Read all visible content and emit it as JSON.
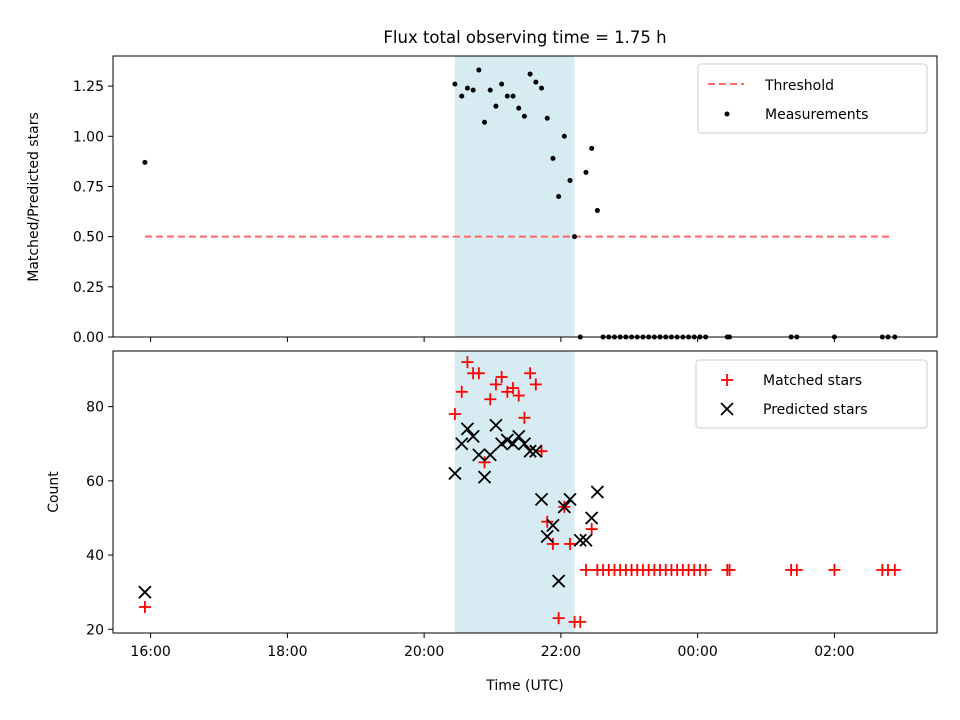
{
  "title": "Flux total observing time = 1.75 h",
  "chart_data": [
    {
      "type": "scatter",
      "panel": "top",
      "title": "Flux total observing time = 1.75 h",
      "xlabel": "",
      "ylabel": "Matched/Predicted stars",
      "xlim": [
        "15:27",
        "03:30"
      ],
      "ylim": [
        0,
        1.4
      ],
      "x_tick_labels": [
        "16:00",
        "18:00",
        "20:00",
        "22:00",
        "00:00",
        "02:00"
      ],
      "y_ticks": [
        0.0,
        0.25,
        0.5,
        0.75,
        1.0,
        1.25
      ],
      "y_tick_labels": [
        "0.00",
        "0.25",
        "0.50",
        "0.75",
        "1.00",
        "1.25"
      ],
      "shaded_interval": {
        "start": "20:27",
        "end": "22:12",
        "color": "#add8e6"
      },
      "legend_position": "top-right",
      "series": [
        {
          "name": "Threshold",
          "style": "dashed-line",
          "color": "#ff6666",
          "x": [
            "15:55",
            "02:50"
          ],
          "y": [
            0.5,
            0.5
          ]
        },
        {
          "name": "Measurements",
          "style": "dot",
          "color": "#000000",
          "x": [
            "15:55",
            "20:27",
            "20:33",
            "20:38",
            "20:43",
            "20:48",
            "20:53",
            "20:58",
            "21:03",
            "21:08",
            "21:13",
            "21:18",
            "21:23",
            "21:28",
            "21:33",
            "21:38",
            "21:43",
            "21:48",
            "21:53",
            "21:58",
            "22:03",
            "22:08",
            "22:12",
            "22:17",
            "22:22",
            "22:27",
            "22:32",
            "22:37",
            "22:42",
            "22:47",
            "22:52",
            "22:57",
            "23:02",
            "23:07",
            "23:12",
            "23:17",
            "23:22",
            "23:27",
            "23:32",
            "23:37",
            "23:42",
            "23:47",
            "23:52",
            "23:57",
            "24:02",
            "24:07",
            "24:26",
            "24:28",
            "25:22",
            "25:27",
            "26:00",
            "26:42",
            "26:47",
            "26:53"
          ],
          "y": [
            0.87,
            1.26,
            1.2,
            1.24,
            1.23,
            1.33,
            1.07,
            1.23,
            1.15,
            1.26,
            1.2,
            1.2,
            1.14,
            1.1,
            1.31,
            1.27,
            1.24,
            1.09,
            0.89,
            0.7,
            1.0,
            0.78,
            0.5,
            0.0,
            0.82,
            0.94,
            0.63,
            0.0,
            0.0,
            0.0,
            0.0,
            0.0,
            0.0,
            0.0,
            0.0,
            0.0,
            0.0,
            0.0,
            0.0,
            0.0,
            0.0,
            0.0,
            0.0,
            0.0,
            0.0,
            0.0,
            0.0,
            0.0,
            0.0,
            0.0,
            0.0,
            0.0,
            0.0,
            0.0
          ]
        }
      ]
    },
    {
      "type": "scatter",
      "panel": "bottom",
      "xlabel": "Time (UTC)",
      "ylabel": "Count",
      "xlim": [
        "15:27",
        "03:30"
      ],
      "ylim": [
        19,
        95
      ],
      "x_tick_labels": [
        "16:00",
        "18:00",
        "20:00",
        "22:00",
        "00:00",
        "02:00"
      ],
      "y_ticks": [
        20,
        40,
        60,
        80
      ],
      "y_tick_labels": [
        "20",
        "40",
        "60",
        "80"
      ],
      "shaded_interval": {
        "start": "20:27",
        "end": "22:12",
        "color": "#add8e6"
      },
      "legend_position": "top-right",
      "series": [
        {
          "name": "Matched stars",
          "style": "plus",
          "color": "#ff0000",
          "x": [
            "15:55",
            "20:27",
            "20:33",
            "20:38",
            "20:43",
            "20:48",
            "20:53",
            "20:58",
            "21:03",
            "21:08",
            "21:13",
            "21:18",
            "21:23",
            "21:28",
            "21:33",
            "21:38",
            "21:43",
            "21:48",
            "21:53",
            "21:58",
            "22:03",
            "22:08",
            "22:12",
            "22:17",
            "22:22",
            "22:27",
            "22:32",
            "22:37",
            "22:42",
            "22:47",
            "22:52",
            "22:57",
            "23:02",
            "23:07",
            "23:12",
            "23:17",
            "23:22",
            "23:27",
            "23:32",
            "23:37",
            "23:42",
            "23:47",
            "23:52",
            "23:57",
            "24:02",
            "24:07",
            "24:26",
            "24:28",
            "25:22",
            "25:27",
            "26:00",
            "26:42",
            "26:47",
            "26:53"
          ],
          "y": [
            26,
            78,
            84,
            92,
            89,
            89,
            65,
            82,
            86,
            88,
            84,
            85,
            83,
            77,
            89,
            86,
            68,
            49,
            43,
            23,
            53,
            43,
            22,
            22,
            36,
            47,
            36,
            36,
            36,
            36,
            36,
            36,
            36,
            36,
            36,
            36,
            36,
            36,
            36,
            36,
            36,
            36,
            36,
            36,
            36,
            36,
            36,
            36,
            36,
            36,
            36,
            36,
            36,
            36
          ]
        },
        {
          "name": "Predicted stars",
          "style": "x",
          "color": "#000000",
          "x": [
            "15:55",
            "20:27",
            "20:33",
            "20:38",
            "20:43",
            "20:48",
            "20:53",
            "20:58",
            "21:03",
            "21:08",
            "21:13",
            "21:18",
            "21:23",
            "21:28",
            "21:33",
            "21:38",
            "21:43",
            "21:48",
            "21:53",
            "21:58",
            "22:03",
            "22:08",
            "22:17",
            "22:22",
            "22:27",
            "22:32"
          ],
          "y": [
            30,
            62,
            70,
            74,
            72,
            67,
            61,
            67,
            75,
            70,
            71,
            70,
            72,
            70,
            68,
            68,
            55,
            45,
            48,
            33,
            53,
            55,
            44,
            44,
            50,
            57
          ]
        }
      ]
    }
  ]
}
